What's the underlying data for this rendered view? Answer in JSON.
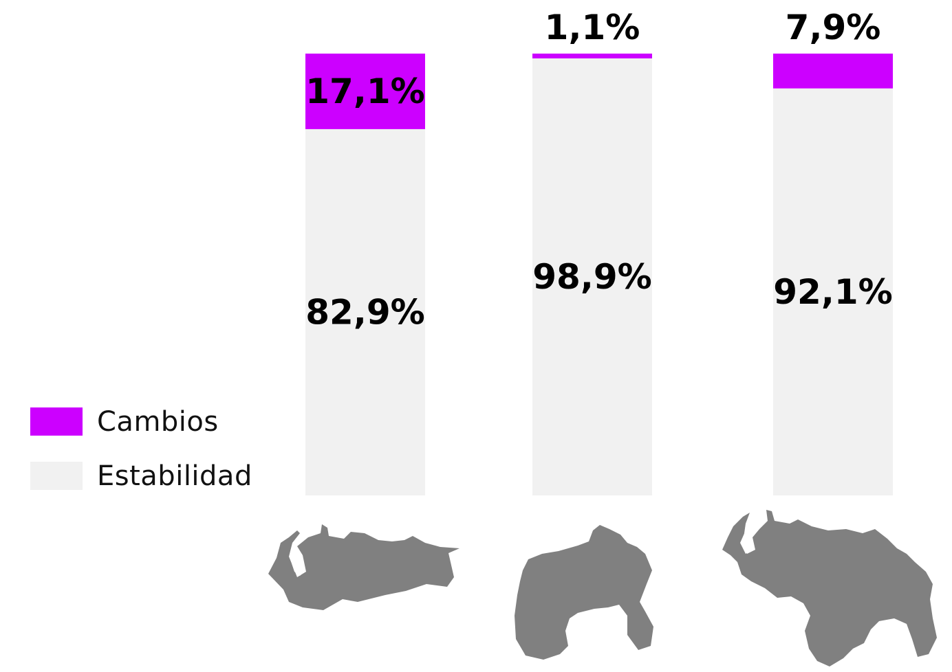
{
  "colors": {
    "cambios": "#cc00ff",
    "estabilidad": "#f1f1f1",
    "map": "#808080"
  },
  "legend": {
    "cambios": "Cambios",
    "estabilidad": "Estabilidad"
  },
  "chart_data": {
    "type": "bar",
    "stacked": true,
    "percent": true,
    "categories": [
      "",
      "",
      ""
    ],
    "series": [
      {
        "name": "Estabilidad",
        "values": [
          82.9,
          98.9,
          92.1
        ],
        "labels": [
          "82,9%",
          "98,9%",
          "92,1%"
        ]
      },
      {
        "name": "Cambios",
        "values": [
          17.1,
          1.1,
          7.9
        ],
        "labels": [
          "17,1%",
          "1,1%",
          "7,9%"
        ]
      }
    ],
    "ylim": [
      0,
      100
    ],
    "grid": false,
    "legend_position": "left",
    "title": "",
    "xlabel": "",
    "ylabel": ""
  }
}
